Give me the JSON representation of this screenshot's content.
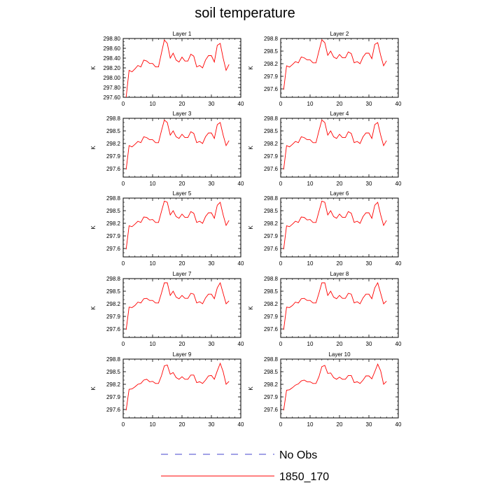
{
  "title": "soil temperature",
  "legend": [
    {
      "label": "No Obs",
      "color": "#4444cc",
      "dash": true
    },
    {
      "label": "1850_170",
      "color": "#ff0000",
      "dash": false
    }
  ],
  "chart_data": [
    {
      "type": "line",
      "title": "Layer 1",
      "ylabel": "K",
      "xlim": [
        0,
        40
      ],
      "ylim": [
        297.6,
        298.8
      ],
      "xticks": [
        0,
        10,
        20,
        30,
        40
      ],
      "yticks": [
        "297.60",
        "297.80",
        "298.00",
        "298.20",
        "298.40",
        "298.60",
        "298.80"
      ],
      "series": [
        {
          "name": "1850_170",
          "color": "#ff0000",
          "x": [
            1,
            2,
            3,
            4,
            5,
            6,
            7,
            8,
            9,
            10,
            11,
            12,
            13,
            14,
            15,
            16,
            17,
            18,
            19,
            20,
            21,
            22,
            23,
            24,
            25,
            26,
            27,
            28,
            29,
            30,
            31,
            32,
            33,
            34,
            35,
            36
          ],
          "y": [
            297.58,
            298.15,
            298.12,
            298.18,
            298.25,
            298.22,
            298.36,
            298.34,
            298.29,
            298.29,
            298.22,
            298.22,
            298.5,
            298.77,
            298.7,
            298.4,
            298.5,
            298.36,
            298.32,
            298.42,
            298.34,
            298.34,
            298.48,
            298.44,
            298.22,
            298.25,
            298.2,
            298.36,
            298.45,
            298.45,
            298.32,
            298.66,
            298.7,
            298.4,
            298.15,
            298.27
          ]
        }
      ]
    },
    {
      "type": "line",
      "title": "Layer 2",
      "ylabel": "K",
      "xlim": [
        0,
        40
      ],
      "ylim": [
        297.4,
        298.8
      ],
      "xticks": [
        0,
        10,
        20,
        30,
        40
      ],
      "yticks": [
        "297.6",
        "297.9",
        "298.2",
        "298.5",
        "298.8"
      ],
      "series": [
        {
          "name": "1850_170",
          "color": "#ff0000",
          "x": [
            1,
            2,
            3,
            4,
            5,
            6,
            7,
            8,
            9,
            10,
            11,
            12,
            13,
            14,
            15,
            16,
            17,
            18,
            19,
            20,
            21,
            22,
            23,
            24,
            25,
            26,
            27,
            28,
            29,
            30,
            31,
            32,
            33,
            34,
            35,
            36
          ],
          "y": [
            297.58,
            298.15,
            298.12,
            298.18,
            298.25,
            298.22,
            298.36,
            298.34,
            298.29,
            298.29,
            298.22,
            298.22,
            298.5,
            298.77,
            298.7,
            298.4,
            298.5,
            298.36,
            298.32,
            298.42,
            298.34,
            298.34,
            298.48,
            298.44,
            298.22,
            298.25,
            298.2,
            298.36,
            298.45,
            298.45,
            298.32,
            298.66,
            298.7,
            298.4,
            298.15,
            298.27
          ]
        }
      ]
    },
    {
      "type": "line",
      "title": "Layer 3",
      "ylabel": "K",
      "xlim": [
        0,
        40
      ],
      "ylim": [
        297.4,
        298.8
      ],
      "xticks": [
        0,
        10,
        20,
        30,
        40
      ],
      "yticks": [
        "297.6",
        "297.9",
        "298.2",
        "298.5",
        "298.8"
      ],
      "series": [
        {
          "name": "1850_170",
          "color": "#ff0000",
          "x": [
            1,
            2,
            3,
            4,
            5,
            6,
            7,
            8,
            9,
            10,
            11,
            12,
            13,
            14,
            15,
            16,
            17,
            18,
            19,
            20,
            21,
            22,
            23,
            24,
            25,
            26,
            27,
            28,
            29,
            30,
            31,
            32,
            33,
            34,
            35,
            36
          ],
          "y": [
            297.58,
            298.15,
            298.12,
            298.18,
            298.25,
            298.22,
            298.36,
            298.34,
            298.29,
            298.29,
            298.22,
            298.22,
            298.5,
            298.76,
            298.7,
            298.4,
            298.5,
            298.36,
            298.32,
            298.42,
            298.34,
            298.34,
            298.48,
            298.44,
            298.22,
            298.25,
            298.2,
            298.36,
            298.45,
            298.45,
            298.32,
            298.65,
            298.7,
            298.4,
            298.15,
            298.27
          ]
        }
      ]
    },
    {
      "type": "line",
      "title": "Layer 4",
      "ylabel": "K",
      "xlim": [
        0,
        40
      ],
      "ylim": [
        297.4,
        298.8
      ],
      "xticks": [
        0,
        10,
        20,
        30,
        40
      ],
      "yticks": [
        "297.6",
        "297.9",
        "298.2",
        "298.5",
        "298.8"
      ],
      "series": [
        {
          "name": "1850_170",
          "color": "#ff0000",
          "x": [
            1,
            2,
            3,
            4,
            5,
            6,
            7,
            8,
            9,
            10,
            11,
            12,
            13,
            14,
            15,
            16,
            17,
            18,
            19,
            20,
            21,
            22,
            23,
            24,
            25,
            26,
            27,
            28,
            29,
            30,
            31,
            32,
            33,
            34,
            35,
            36
          ],
          "y": [
            297.58,
            298.15,
            298.12,
            298.18,
            298.25,
            298.22,
            298.36,
            298.34,
            298.29,
            298.29,
            298.22,
            298.22,
            298.5,
            298.76,
            298.7,
            298.4,
            298.5,
            298.36,
            298.32,
            298.42,
            298.34,
            298.34,
            298.48,
            298.44,
            298.22,
            298.25,
            298.2,
            298.36,
            298.45,
            298.45,
            298.32,
            298.65,
            298.7,
            298.4,
            298.15,
            298.27
          ]
        }
      ]
    },
    {
      "type": "line",
      "title": "Layer 5",
      "ylabel": "K",
      "xlim": [
        0,
        40
      ],
      "ylim": [
        297.4,
        298.8
      ],
      "xticks": [
        0,
        10,
        20,
        30,
        40
      ],
      "yticks": [
        "297.6",
        "297.9",
        "298.2",
        "298.5",
        "298.8"
      ],
      "series": [
        {
          "name": "1850_170",
          "color": "#ff0000",
          "x": [
            1,
            2,
            3,
            4,
            5,
            6,
            7,
            8,
            9,
            10,
            11,
            12,
            13,
            14,
            15,
            16,
            17,
            18,
            19,
            20,
            21,
            22,
            23,
            24,
            25,
            26,
            27,
            28,
            29,
            30,
            31,
            32,
            33,
            34,
            35,
            36
          ],
          "y": [
            297.58,
            298.14,
            298.12,
            298.18,
            298.25,
            298.22,
            298.35,
            298.34,
            298.28,
            298.29,
            298.22,
            298.22,
            298.48,
            298.73,
            298.7,
            298.4,
            298.5,
            298.36,
            298.32,
            298.42,
            298.34,
            298.34,
            298.48,
            298.44,
            298.22,
            298.25,
            298.2,
            298.36,
            298.45,
            298.45,
            298.32,
            298.63,
            298.7,
            298.4,
            298.15,
            298.27
          ]
        }
      ]
    },
    {
      "type": "line",
      "title": "Layer 6",
      "ylabel": "K",
      "xlim": [
        0,
        40
      ],
      "ylim": [
        297.4,
        298.8
      ],
      "xticks": [
        0,
        10,
        20,
        30,
        40
      ],
      "yticks": [
        "297.6",
        "297.9",
        "298.2",
        "298.5",
        "298.8"
      ],
      "series": [
        {
          "name": "1850_170",
          "color": "#ff0000",
          "x": [
            1,
            2,
            3,
            4,
            5,
            6,
            7,
            8,
            9,
            10,
            11,
            12,
            13,
            14,
            15,
            16,
            17,
            18,
            19,
            20,
            21,
            22,
            23,
            24,
            25,
            26,
            27,
            28,
            29,
            30,
            31,
            32,
            33,
            34,
            35,
            36
          ],
          "y": [
            297.58,
            298.14,
            298.12,
            298.18,
            298.25,
            298.22,
            298.35,
            298.34,
            298.28,
            298.29,
            298.22,
            298.22,
            298.48,
            298.73,
            298.7,
            298.4,
            298.5,
            298.36,
            298.32,
            298.42,
            298.34,
            298.34,
            298.48,
            298.44,
            298.22,
            298.25,
            298.2,
            298.36,
            298.45,
            298.45,
            298.32,
            298.63,
            298.7,
            298.4,
            298.15,
            298.27
          ]
        }
      ]
    },
    {
      "type": "line",
      "title": "Layer 7",
      "ylabel": "K",
      "xlim": [
        0,
        40
      ],
      "ylim": [
        297.4,
        298.8
      ],
      "xticks": [
        0,
        10,
        20,
        30,
        40
      ],
      "yticks": [
        "297.6",
        "297.9",
        "298.2",
        "298.5",
        "298.8"
      ],
      "series": [
        {
          "name": "1850_170",
          "color": "#ff0000",
          "x": [
            1,
            2,
            3,
            4,
            5,
            6,
            7,
            8,
            9,
            10,
            11,
            12,
            13,
            14,
            15,
            16,
            17,
            18,
            19,
            20,
            21,
            22,
            23,
            24,
            25,
            26,
            27,
            28,
            29,
            30,
            31,
            32,
            33,
            34,
            35,
            36
          ],
          "y": [
            297.58,
            298.12,
            298.11,
            298.16,
            298.24,
            298.22,
            298.32,
            298.33,
            298.28,
            298.28,
            298.22,
            298.22,
            298.45,
            298.7,
            298.7,
            298.4,
            298.5,
            298.36,
            298.32,
            298.4,
            298.33,
            298.33,
            298.45,
            298.43,
            298.22,
            298.25,
            298.2,
            298.34,
            298.43,
            298.43,
            298.32,
            298.58,
            298.7,
            298.45,
            298.2,
            298.27
          ]
        }
      ]
    },
    {
      "type": "line",
      "title": "Layer 8",
      "ylabel": "K",
      "xlim": [
        0,
        40
      ],
      "ylim": [
        297.4,
        298.8
      ],
      "xticks": [
        0,
        10,
        20,
        30,
        40
      ],
      "yticks": [
        "297.6",
        "297.9",
        "298.2",
        "298.5",
        "298.8"
      ],
      "series": [
        {
          "name": "1850_170",
          "color": "#ff0000",
          "x": [
            1,
            2,
            3,
            4,
            5,
            6,
            7,
            8,
            9,
            10,
            11,
            12,
            13,
            14,
            15,
            16,
            17,
            18,
            19,
            20,
            21,
            22,
            23,
            24,
            25,
            26,
            27,
            28,
            29,
            30,
            31,
            32,
            33,
            34,
            35,
            36
          ],
          "y": [
            297.58,
            298.12,
            298.11,
            298.16,
            298.24,
            298.22,
            298.32,
            298.33,
            298.28,
            298.28,
            298.22,
            298.22,
            298.45,
            298.7,
            298.7,
            298.4,
            298.5,
            298.36,
            298.32,
            298.4,
            298.33,
            298.33,
            298.45,
            298.43,
            298.22,
            298.25,
            298.2,
            298.34,
            298.43,
            298.43,
            298.32,
            298.58,
            298.7,
            298.45,
            298.2,
            298.27
          ]
        }
      ]
    },
    {
      "type": "line",
      "title": "Layer 9",
      "ylabel": "K",
      "xlim": [
        0,
        40
      ],
      "ylim": [
        297.4,
        298.8
      ],
      "xticks": [
        0,
        10,
        20,
        30,
        40
      ],
      "yticks": [
        "297.6",
        "297.9",
        "298.2",
        "298.5",
        "298.8"
      ],
      "series": [
        {
          "name": "1850_170",
          "color": "#ff0000",
          "x": [
            1,
            2,
            3,
            4,
            5,
            6,
            7,
            8,
            9,
            10,
            11,
            12,
            13,
            14,
            15,
            16,
            17,
            18,
            19,
            20,
            21,
            22,
            23,
            24,
            25,
            26,
            27,
            28,
            29,
            30,
            31,
            32,
            33,
            34,
            35,
            36
          ],
          "y": [
            297.58,
            298.08,
            298.09,
            298.14,
            298.2,
            298.22,
            298.3,
            298.32,
            298.26,
            298.27,
            298.22,
            298.22,
            298.4,
            298.64,
            298.66,
            298.44,
            298.48,
            298.36,
            298.32,
            298.38,
            298.32,
            298.32,
            298.42,
            298.42,
            298.24,
            298.26,
            298.22,
            298.3,
            298.4,
            298.41,
            298.32,
            298.52,
            298.7,
            298.5,
            298.2,
            298.27
          ]
        }
      ]
    },
    {
      "type": "line",
      "title": "Layer 10",
      "ylabel": "K",
      "xlim": [
        0,
        40
      ],
      "ylim": [
        297.4,
        298.8
      ],
      "xticks": [
        0,
        10,
        20,
        30,
        40
      ],
      "yticks": [
        "297.6",
        "297.9",
        "298.2",
        "298.5",
        "298.8"
      ],
      "series": [
        {
          "name": "1850_170",
          "color": "#ff0000",
          "x": [
            1,
            2,
            3,
            4,
            5,
            6,
            7,
            8,
            9,
            10,
            11,
            12,
            13,
            14,
            15,
            16,
            17,
            18,
            19,
            20,
            21,
            22,
            23,
            24,
            25,
            26,
            27,
            28,
            29,
            30,
            31,
            32,
            33,
            34,
            35,
            36
          ],
          "y": [
            297.58,
            298.06,
            298.07,
            298.12,
            298.18,
            298.21,
            298.28,
            298.3,
            298.26,
            298.26,
            298.22,
            298.22,
            298.38,
            298.62,
            298.65,
            298.46,
            298.47,
            298.36,
            298.32,
            298.37,
            298.32,
            298.32,
            298.41,
            298.41,
            298.24,
            298.26,
            298.22,
            298.3,
            298.4,
            298.4,
            298.33,
            298.5,
            298.68,
            298.52,
            298.2,
            298.27
          ]
        }
      ]
    }
  ]
}
